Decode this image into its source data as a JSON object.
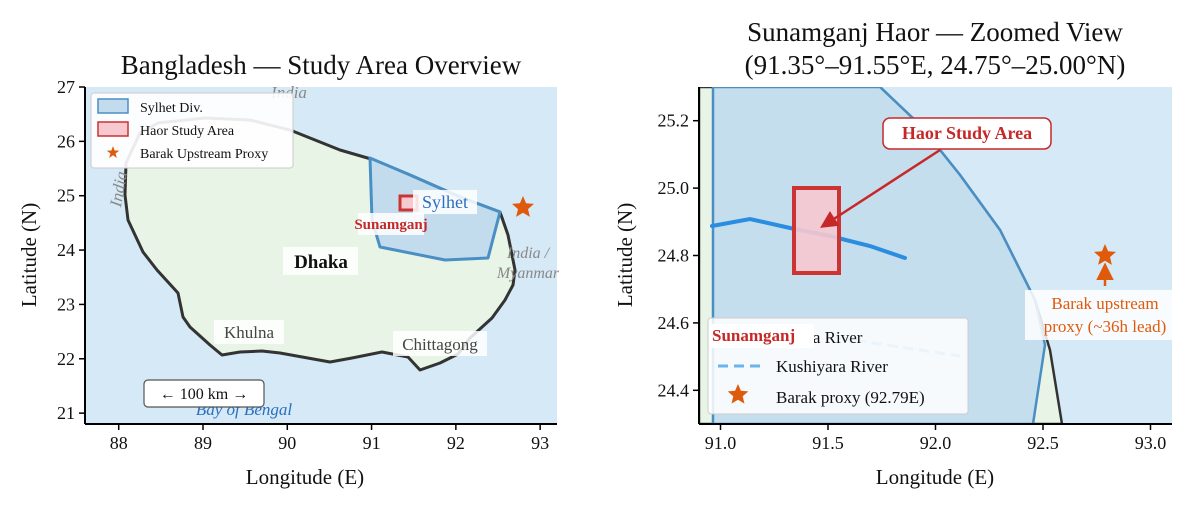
{
  "colors": {
    "sea": "#d6e9f6",
    "land": "#e8f4e6",
    "sylhet_fill": "#c2dcee",
    "sylhet_edge": "#4a8fc4",
    "haor_edge": "#cc3333",
    "haor_fill": "#f6c8cf",
    "boundary": "#333333",
    "star": "#e05a0c",
    "river": "#2a8de0",
    "annotation": "#c62828"
  },
  "left": {
    "title": "Bangladesh — Study Area Overview",
    "xlabel": "Longitude (E)",
    "ylabel": "Latitude (N)",
    "xlim": [
      87.6,
      93.2
    ],
    "ylim": [
      20.8,
      27.0
    ],
    "xticks": [
      "88",
      "89",
      "90",
      "91",
      "92",
      "93"
    ],
    "yticks": [
      "21",
      "22",
      "23",
      "24",
      "25",
      "26",
      "27"
    ],
    "legend": [
      "Sylhet Div.",
      "Haor Study Area",
      "Barak Upstream Proxy"
    ],
    "labels": {
      "india_top": "India",
      "india_left": "India",
      "india_myanmar_1": "India /",
      "india_myanmar_2": "Myanmar",
      "dhaka": "Dhaka",
      "sylhet": "Sylhet",
      "sunamganj": "Sunamganj",
      "khulna": "Khulna",
      "chittagong": "Chittagong",
      "bay": "Bay of Bengal",
      "scale": "← 100 km →"
    },
    "barak_proxy": [
      92.79,
      24.8
    ],
    "haor_box": {
      "lon": [
        91.35,
        91.55
      ],
      "lat": [
        24.75,
        25.0
      ]
    }
  },
  "right": {
    "title_line1": "Sunamganj Haor — Zoomed View",
    "title_line2": "(91.35°–91.55°E, 24.75°–25.00°N)",
    "xlabel": "Longitude (E)",
    "ylabel": "Latitude (N)",
    "xlim": [
      90.9,
      93.1
    ],
    "ylim": [
      24.3,
      25.3
    ],
    "xticks": [
      "91.0",
      "91.5",
      "92.0",
      "92.5",
      "93.0"
    ],
    "yticks": [
      "24.4",
      "24.6",
      "24.8",
      "25.0",
      "25.2"
    ],
    "annotation": "Haor Study Area",
    "sunamganj": "Sunamganj",
    "barak_label_1": "Barak upstream",
    "barak_label_2": "proxy (~36h lead)",
    "legend": [
      "Surma River",
      "Kushiyara River",
      "Barak proxy (92.79E)"
    ]
  }
}
